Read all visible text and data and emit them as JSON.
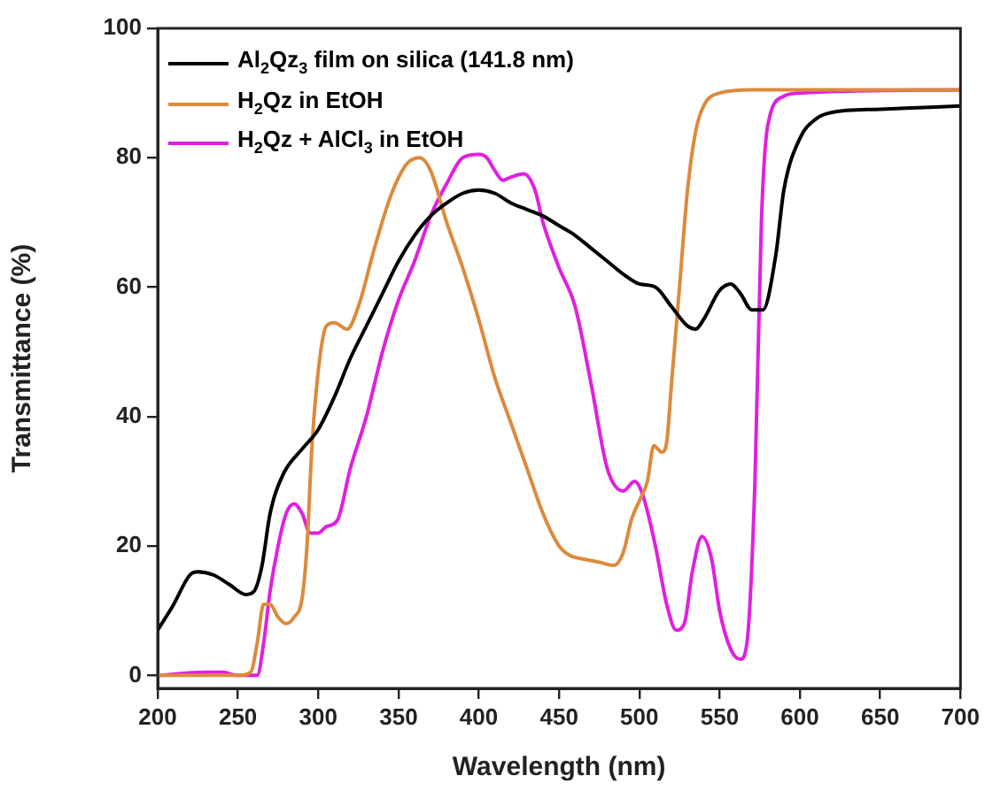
{
  "chart_data": {
    "type": "line",
    "xlabel": "Wavelength (nm)",
    "ylabel": "Transmittance (%)",
    "xlim": [
      200,
      700
    ],
    "xticks": [
      200,
      250,
      300,
      350,
      400,
      450,
      500,
      550,
      600,
      650,
      700
    ],
    "ylim": [
      -2,
      100
    ],
    "yticks": [
      0,
      20,
      40,
      60,
      80,
      100
    ],
    "legend": "top left",
    "marker": "none",
    "series": [
      {
        "name": "Al$_{2}$Qz$_{3}$ film on silica (141.8 nm)",
        "color": "#000000",
        "x": [
          200,
          210,
          220,
          225,
          235,
          245,
          255,
          260,
          265,
          270,
          278,
          290,
          300,
          310,
          320,
          330,
          340,
          350,
          360,
          370,
          380,
          390,
          400,
          410,
          420,
          430,
          440,
          450,
          460,
          470,
          480,
          490,
          500,
          510,
          520,
          530,
          535,
          540,
          550,
          557,
          563,
          570,
          577,
          585,
          590,
          600,
          610,
          620,
          650,
          700
        ],
        "values": [
          7,
          11,
          15.5,
          16,
          15.5,
          14,
          12.5,
          13,
          17,
          25,
          31,
          35,
          38,
          43,
          49,
          54,
          59,
          64,
          68,
          71,
          73,
          74.5,
          75,
          74.5,
          73,
          72,
          71,
          69.5,
          68,
          66,
          64,
          62,
          60.5,
          60,
          57,
          54,
          53.5,
          55,
          59.5,
          60.5,
          59,
          56.5,
          56.5,
          65,
          75,
          83,
          86,
          87,
          87.5,
          88
        ]
      },
      {
        "name": "H$_{2}$Qz in EtOH",
        "color": "#dc8a3c",
        "x": [
          200,
          250,
          258,
          262,
          266,
          270,
          275,
          280,
          285,
          290,
          293,
          296,
          300,
          305,
          310,
          318,
          325,
          335,
          345,
          355,
          363,
          370,
          380,
          390,
          400,
          410,
          420,
          430,
          440,
          450,
          457,
          465,
          475,
          484,
          490,
          495,
          500,
          505,
          509,
          514,
          517,
          520,
          525,
          530,
          535,
          540,
          550,
          570,
          700
        ],
        "values": [
          0,
          0,
          0.5,
          5,
          11,
          11,
          9,
          8,
          9,
          12,
          20,
          35,
          47,
          54,
          54.5,
          53.5,
          57,
          66,
          74,
          79,
          80,
          78,
          70,
          63,
          55,
          46,
          39,
          32,
          25,
          20,
          18.5,
          18,
          17.5,
          17,
          19,
          24,
          27,
          30,
          35.5,
          34.5,
          36,
          45,
          60,
          75,
          84,
          88,
          90,
          90.5,
          90.5
        ]
      },
      {
        "name": "H$_{2}$Qz + AlCl$_{3}$ in EtOH",
        "color": "#e020e0",
        "x": [
          200,
          230,
          240,
          250,
          262,
          266,
          270,
          275,
          280,
          285,
          290,
          295,
          300,
          305,
          312,
          320,
          330,
          340,
          350,
          360,
          370,
          380,
          390,
          400,
          405,
          410,
          415,
          420,
          428,
          435,
          440,
          450,
          460,
          470,
          480,
          490,
          497,
          502,
          510,
          517,
          523,
          528,
          533,
          539,
          545,
          550,
          557,
          563,
          567,
          572,
          576,
          580,
          590,
          600,
          700
        ],
        "values": [
          0,
          0.5,
          0.5,
          0,
          0,
          5,
          13,
          20,
          25,
          26.5,
          25,
          22,
          22,
          23,
          24,
          32,
          40,
          50,
          58,
          64,
          71,
          76,
          80,
          80.5,
          80,
          78,
          76.5,
          77,
          77.5,
          75,
          70,
          63,
          57,
          45,
          32,
          28.5,
          30,
          28,
          20,
          11,
          7,
          8,
          16,
          21.5,
          18,
          10,
          4,
          2.5,
          5,
          30,
          70,
          85,
          89.5,
          90,
          90.5
        ]
      }
    ]
  }
}
